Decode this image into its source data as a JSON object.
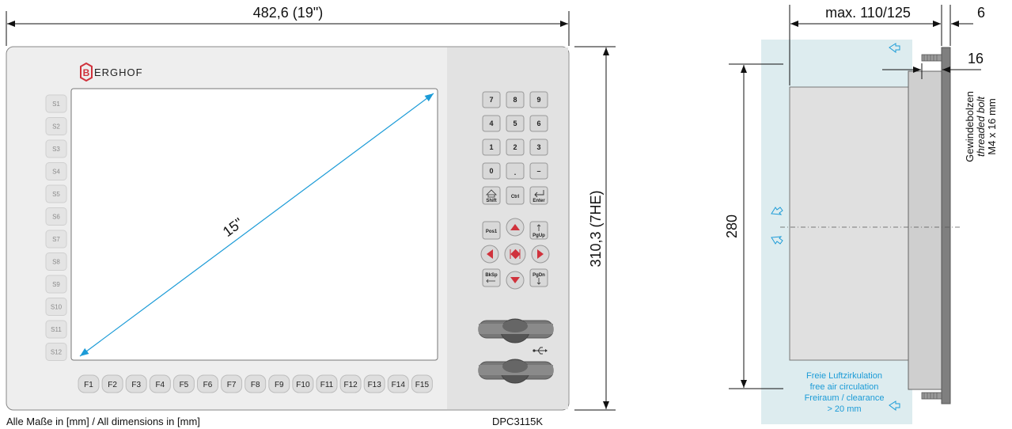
{
  "dimensions": {
    "total_width": "482,6 (19\")",
    "total_height": "310,3 (7HE)",
    "diagonal": "15\"",
    "depth": "max. 110/125",
    "front_thickness": "6",
    "bolt_length": "16",
    "mount_height": "280"
  },
  "brand": {
    "letter": "B",
    "name": "ERGHOF"
  },
  "soft_keys": [
    "S1",
    "S2",
    "S3",
    "S4",
    "S5",
    "S6",
    "S7",
    "S8",
    "S9",
    "S10",
    "S11",
    "S12"
  ],
  "function_keys": [
    "F1",
    "F2",
    "F3",
    "F4",
    "F5",
    "F6",
    "F7",
    "F8",
    "F9",
    "F10",
    "F11",
    "F12",
    "F13",
    "F14",
    "F15"
  ],
  "keypad": {
    "row1": [
      "7",
      "8",
      "9"
    ],
    "row2": [
      "4",
      "5",
      "6"
    ],
    "row3": [
      "1",
      "2",
      "3"
    ],
    "row4": [
      "0",
      ".",
      "–"
    ],
    "shift": "Shift",
    "ctrl": "Ctrl",
    "enter": "Enter",
    "pos1": "Pos1",
    "pgup": "PgUp",
    "bksp": "BkSp",
    "pgdn": "PgDn"
  },
  "bolt_label": {
    "de": "Gewindebolzen",
    "en": "threaded bolt",
    "spec": "M4 x 16 mm"
  },
  "airflow": {
    "line1": "Freie Luftzirkulation",
    "line2": "free air circulation",
    "line3": "Freiraum / clearance",
    "line4": "> 20 mm"
  },
  "footer": {
    "note": "Alle Maße in [mm] / All dimensions in [mm]",
    "model": "DPC3115K"
  },
  "colors": {
    "accent": "#1b9bd7",
    "brand_red": "#d0323c",
    "air_zone": "#ddecef"
  }
}
